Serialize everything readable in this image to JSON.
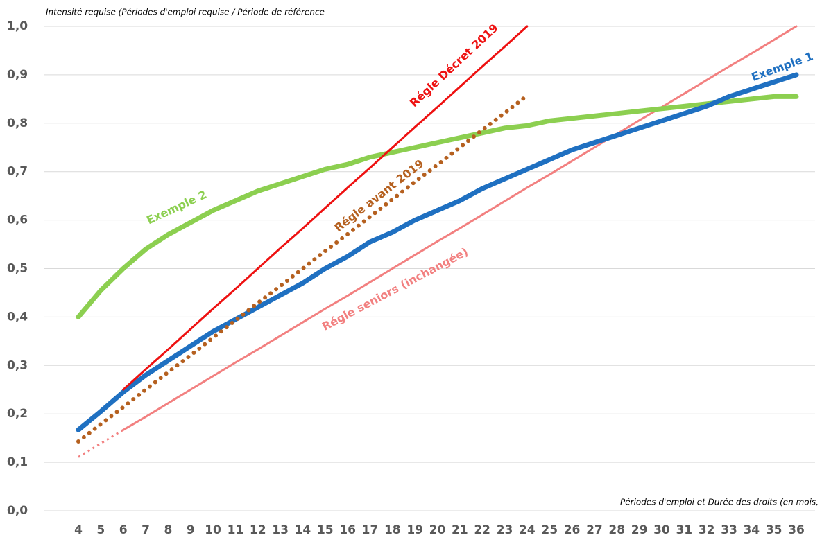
{
  "chart_data": {
    "type": "line",
    "y_axis_label": "Intensité requise  (Périodes d'emploi requise / Période de référence",
    "x_axis_label": "Périodes d'emploi et Durée des droits (en mois,",
    "x": [
      4,
      5,
      6,
      7,
      8,
      9,
      10,
      11,
      12,
      13,
      14,
      15,
      16,
      17,
      18,
      19,
      20,
      21,
      22,
      23,
      24,
      25,
      26,
      27,
      28,
      29,
      30,
      31,
      32,
      33,
      34,
      35,
      36
    ],
    "xlim": [
      4,
      36
    ],
    "xticks": [
      4,
      5,
      6,
      7,
      8,
      9,
      10,
      11,
      12,
      13,
      14,
      15,
      16,
      17,
      18,
      19,
      20,
      21,
      22,
      23,
      24,
      25,
      26,
      27,
      28,
      29,
      30,
      31,
      32,
      33,
      34,
      35,
      36
    ],
    "ylim": [
      0,
      1
    ],
    "yticks": [
      {
        "value": 0,
        "label": "0,0"
      },
      {
        "value": 0.1,
        "label": "0,1"
      },
      {
        "value": 0.2,
        "label": "0,2"
      },
      {
        "value": 0.3,
        "label": "0,3"
      },
      {
        "value": 0.4,
        "label": "0,4"
      },
      {
        "value": 0.5,
        "label": "0,5"
      },
      {
        "value": 0.6,
        "label": "0,6"
      },
      {
        "value": 0.7,
        "label": "0,7"
      },
      {
        "value": 0.8,
        "label": "0,8"
      },
      {
        "value": 0.9,
        "label": "0,9"
      },
      {
        "value": 1,
        "label": "1,0"
      }
    ],
    "grid": true,
    "series": [
      {
        "color": "#f28080",
        "style": "dotted",
        "values": [
          0.111,
          0.139,
          0.167,
          null,
          null,
          null,
          null,
          null,
          null,
          null,
          null,
          null,
          null,
          null,
          null,
          null,
          null,
          null,
          null,
          null,
          null,
          null,
          null,
          null,
          null,
          null,
          null,
          null,
          null,
          null,
          null,
          null,
          null
        ]
      },
      {
        "name": "Régle seniors (inchangée)",
        "color": "#f28080",
        "style": "solid",
        "values": [
          null,
          null,
          0.167,
          0.194,
          0.222,
          0.25,
          0.278,
          0.306,
          0.333,
          0.361,
          0.389,
          0.417,
          0.444,
          0.472,
          0.5,
          0.528,
          0.556,
          0.583,
          0.611,
          0.639,
          0.667,
          0.694,
          0.722,
          0.75,
          0.778,
          0.806,
          0.833,
          0.861,
          0.889,
          0.917,
          0.944,
          0.972,
          1.0
        ]
      },
      {
        "name": "Exemple 2",
        "color": "#8ccf50",
        "style": "thick",
        "values": [
          0.4,
          0.455,
          0.5,
          0.54,
          0.57,
          0.595,
          0.62,
          0.64,
          0.66,
          0.675,
          0.69,
          0.705,
          0.715,
          0.73,
          0.74,
          0.75,
          0.76,
          0.77,
          0.78,
          0.79,
          0.795,
          0.805,
          0.81,
          0.815,
          0.82,
          0.825,
          0.83,
          0.835,
          0.84,
          0.845,
          0.85,
          0.855,
          0.855
        ]
      },
      {
        "name": "Exemple 1",
        "color": "#1f70c1",
        "style": "thick",
        "values": [
          0.167,
          0.205,
          0.245,
          0.28,
          0.31,
          0.34,
          0.37,
          0.395,
          0.42,
          0.445,
          0.47,
          0.5,
          0.525,
          0.555,
          0.575,
          0.6,
          0.62,
          0.64,
          0.665,
          0.685,
          0.705,
          0.725,
          0.745,
          0.76,
          0.775,
          0.79,
          0.805,
          0.82,
          0.835,
          0.855,
          0.87,
          0.885,
          0.9
        ]
      },
      {
        "name": "Régle avant 2019",
        "color": "#b5601f",
        "style": "dotted",
        "values": [
          0.143,
          0.179,
          0.214,
          0.25,
          0.286,
          0.321,
          0.357,
          0.393,
          0.429,
          0.464,
          0.5,
          0.536,
          0.571,
          0.607,
          0.643,
          0.679,
          0.714,
          0.75,
          0.786,
          0.821,
          0.857,
          null,
          null,
          null,
          null,
          null,
          null,
          null,
          null,
          null,
          null,
          null,
          null
        ]
      },
      {
        "name": "Régle Décret 2019",
        "color": "#ee1111",
        "style": "solid",
        "values": [
          null,
          null,
          0.25,
          0.292,
          0.333,
          0.375,
          0.417,
          0.458,
          0.5,
          0.542,
          0.583,
          0.625,
          0.667,
          0.708,
          0.75,
          0.792,
          0.833,
          0.875,
          0.917,
          0.958,
          1.0,
          null,
          null,
          null,
          null,
          null,
          null,
          null,
          null,
          null,
          null,
          null,
          null
        ]
      }
    ]
  }
}
